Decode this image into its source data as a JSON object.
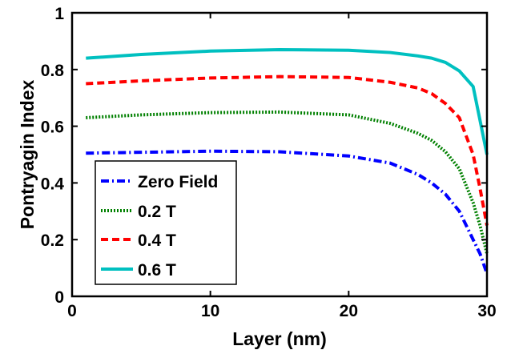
{
  "chart_data": {
    "type": "line",
    "title": "",
    "xlabel": "Layer (nm)",
    "ylabel": "Pontryagin Index",
    "xlim": [
      0,
      30
    ],
    "ylim": [
      0,
      1
    ],
    "xticks": [
      "0",
      "10",
      "20",
      "30"
    ],
    "yticks": [
      "0",
      "0.2",
      "0.4",
      "0.6",
      "0.8",
      "1"
    ],
    "grid": false,
    "legend_position": "bottom-left",
    "series": [
      {
        "name": "Zero Field",
        "color": "#0000ff",
        "dash": "dash-dot",
        "x": [
          1,
          5,
          10,
          15,
          20,
          23,
          25,
          26,
          27,
          28,
          29,
          29.5,
          30
        ],
        "y": [
          0.505,
          0.508,
          0.512,
          0.51,
          0.495,
          0.47,
          0.43,
          0.4,
          0.36,
          0.3,
          0.2,
          0.15,
          0.08
        ]
      },
      {
        "name": "0.2 T",
        "color": "#008000",
        "dash": "dotted",
        "x": [
          1,
          5,
          10,
          15,
          20,
          23,
          25,
          26,
          27,
          28,
          29,
          29.5,
          30
        ],
        "y": [
          0.63,
          0.64,
          0.648,
          0.65,
          0.64,
          0.61,
          0.575,
          0.55,
          0.51,
          0.45,
          0.33,
          0.25,
          0.15
        ]
      },
      {
        "name": "0.4 T",
        "color": "#ff0000",
        "dash": "dashed",
        "x": [
          1,
          5,
          10,
          15,
          20,
          23,
          25,
          26,
          27,
          28,
          29,
          29.5,
          30
        ],
        "y": [
          0.75,
          0.76,
          0.77,
          0.775,
          0.772,
          0.755,
          0.735,
          0.715,
          0.68,
          0.63,
          0.5,
          0.38,
          0.25
        ]
      },
      {
        "name": "0.6 T",
        "color": "#00c0c0",
        "dash": "solid",
        "x": [
          1,
          5,
          10,
          15,
          20,
          23,
          25,
          26,
          27,
          28,
          29,
          29.5,
          30
        ],
        "y": [
          0.84,
          0.853,
          0.865,
          0.87,
          0.868,
          0.86,
          0.848,
          0.84,
          0.825,
          0.795,
          0.74,
          0.62,
          0.5
        ]
      }
    ]
  }
}
